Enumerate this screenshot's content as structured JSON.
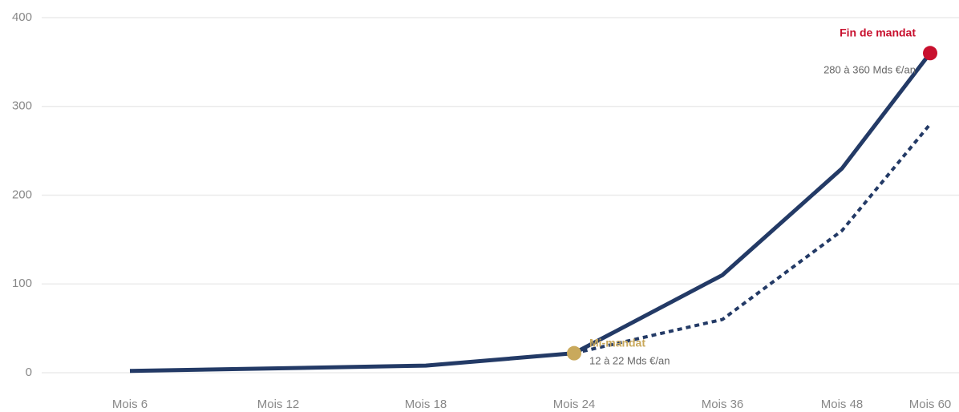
{
  "chart_data": {
    "type": "line",
    "categories": [
      "Mois 6",
      "Mois 12",
      "Mois 18",
      "Mois 24",
      "Mois 36",
      "Mois 48",
      "Mois 60"
    ],
    "series": [
      {
        "color": "#233a66",
        "style": "solid",
        "values": [
          2,
          5,
          8,
          22,
          110,
          230,
          360
        ]
      },
      {
        "color": "#233a66",
        "style": "dotted",
        "values": [
          null,
          null,
          null,
          22,
          60,
          160,
          280
        ]
      }
    ],
    "ylim": [
      0,
      400
    ],
    "yticks": [
      0,
      100,
      200,
      300,
      400
    ],
    "grid": true,
    "annotations": [
      {
        "label": "Mi-mandat",
        "detail": "12 à 22 Mds €/an",
        "color": "#c9a95c"
      },
      {
        "label": "Fin de mandat",
        "detail": "280 à 360 Mds €/an",
        "color": "#c8102e"
      }
    ]
  }
}
